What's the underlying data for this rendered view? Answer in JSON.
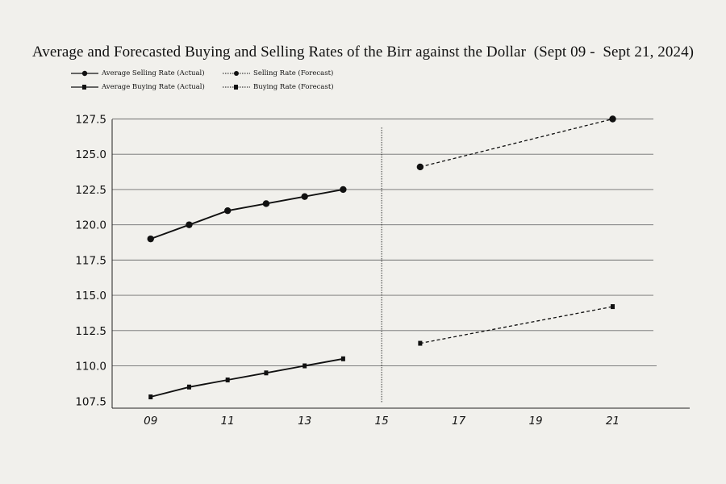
{
  "chart_data": {
    "type": "line",
    "title": "Average and Forecasted Buying and Selling Rates of the Birr against the Dollar  (Sept 09 -  Sept 21, 2024)",
    "xlabel": "",
    "ylabel": "",
    "x_ticks": [
      "09",
      "11",
      "13",
      "15",
      "17",
      "19",
      "21"
    ],
    "x_tick_values": [
      9,
      11,
      13,
      15,
      17,
      19,
      21
    ],
    "y_ticks": [
      "107.5",
      "110.0",
      "112.5",
      "115.0",
      "117.5",
      "120.0",
      "122.5",
      "125.0",
      "127.5"
    ],
    "y_tick_values": [
      107.5,
      110.0,
      112.5,
      115.0,
      117.5,
      120.0,
      122.5,
      125.0,
      127.5
    ],
    "xlim": [
      8,
      23
    ],
    "ylim": [
      107.0,
      128.5
    ],
    "grid": "horizontal",
    "divider_x": 15,
    "legend_position": "top-left",
    "series": [
      {
        "name": "Average Selling Rate (Actual)",
        "marker": "circle",
        "line": "solid",
        "x": [
          9,
          10,
          11,
          12,
          13,
          14
        ],
        "y": [
          119.0,
          120.0,
          121.0,
          121.5,
          122.0,
          122.5
        ]
      },
      {
        "name": "Average Buying Rate (Actual)",
        "marker": "square",
        "line": "solid",
        "x": [
          9,
          10,
          11,
          12,
          13,
          14
        ],
        "y": [
          107.8,
          108.5,
          109.0,
          109.5,
          110.0,
          110.5
        ]
      },
      {
        "name": "Selling Rate (Forecast)",
        "marker": "circle",
        "line": "dashed",
        "x": [
          16,
          21
        ],
        "y": [
          124.1,
          127.5
        ]
      },
      {
        "name": "Buying Rate (Forecast)",
        "marker": "square",
        "line": "dashed",
        "x": [
          16,
          21
        ],
        "y": [
          111.6,
          114.2
        ]
      }
    ]
  }
}
